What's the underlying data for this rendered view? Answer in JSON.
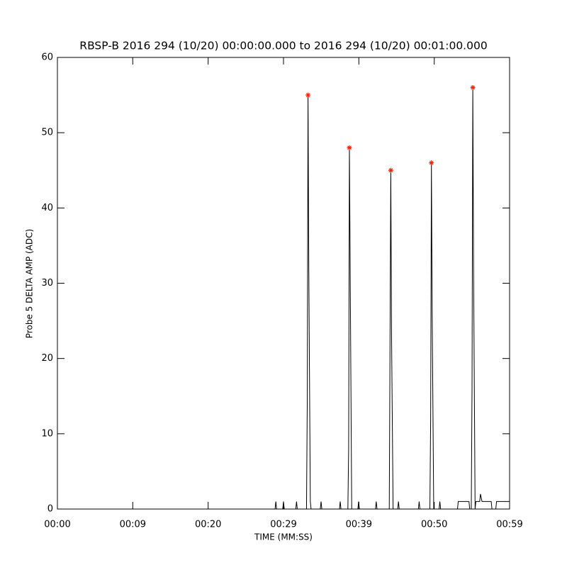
{
  "chart_data": {
    "type": "line",
    "title": "RBSP-B 2016 294 (10/20) 00:00:00.000 to 2016 294 (10/20) 00:01:00.000",
    "xlabel": "TIME (MM:SS)",
    "ylabel": "Probe 5 DELTA AMP (ADC)",
    "xlim": [
      0,
      59
    ],
    "xticks": [
      {
        "value": 0,
        "label": "00:00"
      },
      {
        "value": 9.83,
        "label": "00:09"
      },
      {
        "value": 19.67,
        "label": "00:20"
      },
      {
        "value": 29.5,
        "label": "00:29"
      },
      {
        "value": 39.33,
        "label": "00:39"
      },
      {
        "value": 49.17,
        "label": "00:50"
      },
      {
        "value": 59,
        "label": "00:59"
      }
    ],
    "ylim": [
      0,
      60
    ],
    "yticks": [
      0,
      10,
      20,
      30,
      40,
      50,
      60
    ],
    "color": "#000000",
    "x": [
      0,
      28.4,
      28.5,
      28.6,
      29.4,
      29.5,
      29.6,
      31.1,
      31.2,
      31.3,
      32.5,
      32.6,
      32.7,
      32.8,
      33.0,
      33.1,
      34.3,
      34.4,
      34.5,
      36.8,
      36.9,
      37.0,
      37.9,
      38.0,
      38.1,
      38.2,
      38.4,
      39.2,
      39.3,
      39.4,
      41.5,
      41.6,
      41.7,
      43.3,
      43.4,
      43.5,
      43.6,
      43.8,
      44.4,
      44.5,
      44.6,
      47.1,
      47.2,
      47.3,
      48.6,
      48.7,
      48.8,
      48.9,
      49.1,
      49.8,
      49.9,
      50.0,
      52.2,
      52.3,
      53.7,
      53.8,
      54.0,
      54.1,
      54.2,
      54.3,
      54.5,
      54.6,
      55.1,
      55.2,
      55.4,
      56.6,
      56.7,
      57.2,
      57.3,
      59
    ],
    "values": [
      0,
      0,
      1,
      0,
      0,
      1,
      0,
      0,
      1,
      0,
      0,
      14,
      55,
      32,
      1,
      0,
      0,
      1,
      0,
      0,
      1,
      0,
      0,
      8,
      48,
      32,
      0,
      0,
      1,
      0,
      0,
      1,
      0,
      0,
      22,
      45,
      23,
      0,
      0,
      1,
      0,
      0,
      1,
      0,
      0,
      12,
      46,
      26,
      0,
      0,
      1,
      0,
      0,
      1,
      1,
      0,
      0,
      16,
      56,
      32,
      0,
      1,
      1,
      2,
      1,
      1,
      0,
      0,
      1,
      1
    ],
    "markers": {
      "color": "#ff2200",
      "x": [
        32.7,
        38.1,
        43.5,
        48.8,
        54.2
      ],
      "values": [
        55,
        48,
        45,
        46,
        56
      ]
    }
  }
}
